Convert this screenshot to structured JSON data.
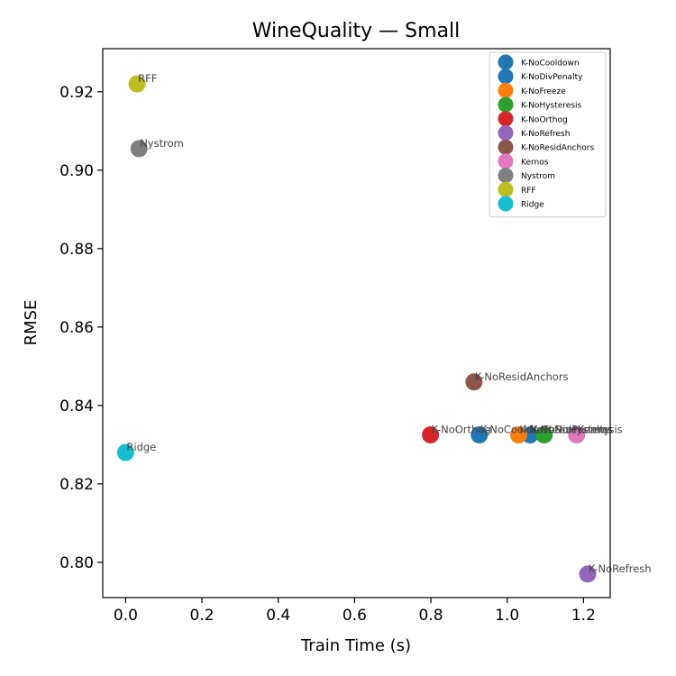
{
  "chart_data": {
    "type": "scatter",
    "title": "WineQuality — Small",
    "xlabel": "Train Time (s)",
    "ylabel": "RMSE",
    "xlim": [
      -0.06,
      1.27
    ],
    "ylim": [
      0.791,
      0.931
    ],
    "xticks": [
      "0.0",
      "0.2",
      "0.4",
      "0.6",
      "0.8",
      "1.0",
      "1.2"
    ],
    "yticks": [
      "0.80",
      "0.82",
      "0.84",
      "0.86",
      "0.88",
      "0.90",
      "0.92"
    ],
    "grid": false,
    "legend_position": "top-right",
    "points": [
      {
        "name": "K-NoCooldown",
        "x": 0.927,
        "y": 0.8325,
        "color": "#1f77b4"
      },
      {
        "name": "K-NoDivPenalty",
        "x": 1.06,
        "y": 0.8325,
        "color": "#1f77b4"
      },
      {
        "name": "K-NoFreeze",
        "x": 1.03,
        "y": 0.8325,
        "color": "#ff7f0e"
      },
      {
        "name": "K-NoHysteresis",
        "x": 1.097,
        "y": 0.8325,
        "color": "#2ca02c"
      },
      {
        "name": "K-NoOrthog",
        "x": 0.799,
        "y": 0.8325,
        "color": "#d62728"
      },
      {
        "name": "K-NoRefresh",
        "x": 1.211,
        "y": 0.797,
        "color": "#9467bd"
      },
      {
        "name": "K-NoResidAnchors",
        "x": 0.913,
        "y": 0.846,
        "color": "#8c564b"
      },
      {
        "name": "Kernos",
        "x": 1.182,
        "y": 0.8325,
        "color": "#e377c2"
      },
      {
        "name": "Nystrom",
        "x": 0.035,
        "y": 0.9055,
        "color": "#7f7f7f"
      },
      {
        "name": "RFF",
        "x": 0.03,
        "y": 0.922,
        "color": "#bcbd22"
      },
      {
        "name": "Ridge",
        "x": 0.0,
        "y": 0.828,
        "color": "#17becf"
      }
    ]
  }
}
